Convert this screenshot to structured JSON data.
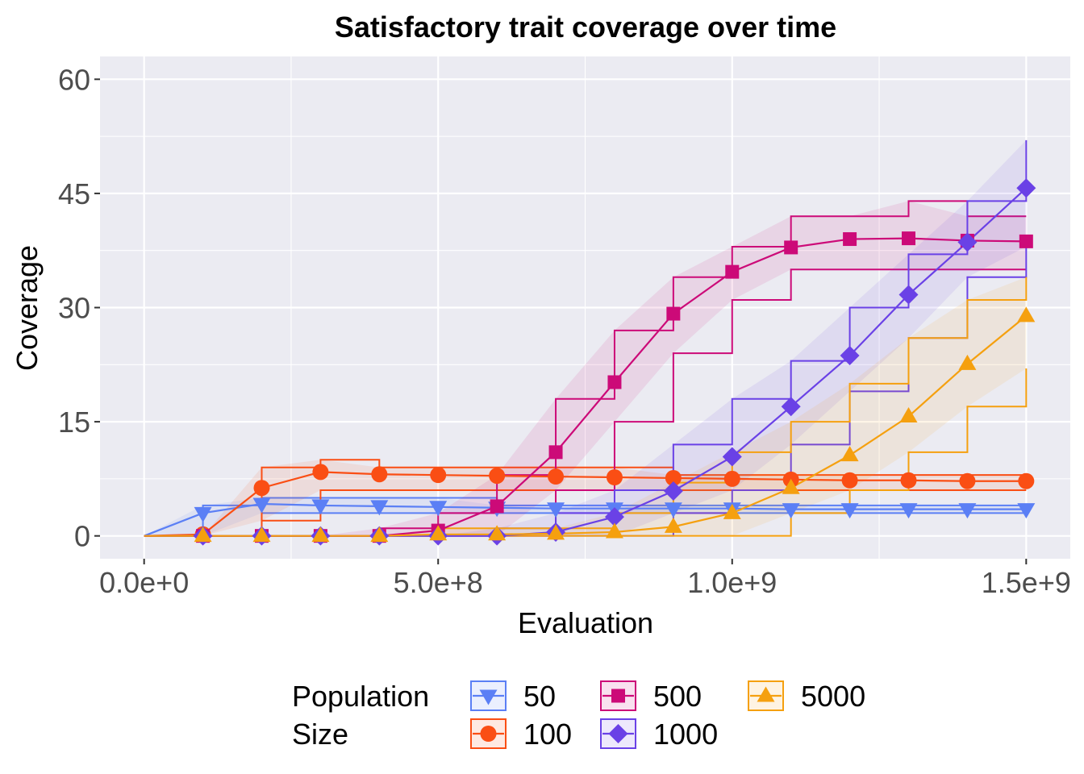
{
  "chart_data": {
    "type": "line",
    "title": "Satisfactory trait coverage over time",
    "xlabel": "Evaluation",
    "ylabel": "Coverage",
    "xlim": [
      -75000000,
      1575000000
    ],
    "ylim": [
      -3,
      63
    ],
    "x_ticks": [
      0,
      500000000,
      1000000000,
      1500000000
    ],
    "x_tick_labels": [
      "0.0e+0",
      "5.0e+8",
      "1.0e+9",
      "1.5e+9"
    ],
    "y_ticks": [
      0,
      15,
      30,
      45,
      60
    ],
    "y_tick_labels": [
      "0",
      "15",
      "30",
      "45",
      "60"
    ],
    "grid": true,
    "background": "#ebebf2",
    "legend": {
      "title_lines": [
        "Population",
        "Size"
      ],
      "position": "bottom"
    },
    "x": [
      0,
      100000000,
      200000000,
      300000000,
      400000000,
      500000000,
      600000000,
      700000000,
      800000000,
      900000000,
      1000000000,
      1100000000,
      1200000000,
      1300000000,
      1400000000,
      1500000000
    ],
    "series": [
      {
        "name": "50",
        "color": "#5b7ff5",
        "marker": "triangle-down",
        "values": [
          0,
          3,
          4.2,
          4.0,
          3.9,
          3.8,
          3.7,
          3.6,
          3.6,
          3.6,
          3.6,
          3.5,
          3.5,
          3.5,
          3.5,
          3.5
        ],
        "lower": [
          0,
          0,
          3,
          3,
          3,
          3,
          3,
          3,
          3,
          3,
          3,
          3,
          3,
          3,
          3,
          3
        ],
        "upper": [
          0,
          4,
          5,
          5,
          5,
          5,
          4,
          4,
          4,
          4,
          4,
          4,
          4,
          4,
          4,
          4
        ]
      },
      {
        "name": "100",
        "color": "#fa4e14",
        "marker": "circle",
        "values": [
          0,
          0.2,
          6.3,
          8.4,
          8.1,
          8.0,
          7.9,
          7.8,
          7.7,
          7.6,
          7.5,
          7.4,
          7.3,
          7.3,
          7.2,
          7.2
        ],
        "lower": [
          0,
          0,
          2,
          6,
          6,
          6,
          6,
          6,
          6,
          6,
          6,
          6,
          6,
          6,
          6,
          6
        ],
        "upper": [
          0,
          0,
          9,
          10,
          9,
          9,
          9,
          9,
          9,
          8,
          8,
          8,
          8,
          8,
          8,
          8
        ]
      },
      {
        "name": "500",
        "color": "#cc0a78",
        "marker": "square",
        "values": [
          0,
          0,
          0,
          0,
          0,
          0.7,
          3.9,
          11,
          20.2,
          29.2,
          34.7,
          37.9,
          39.0,
          39.1,
          38.8,
          38.7
        ],
        "lower": [
          0,
          0,
          0,
          0,
          0,
          0,
          0,
          6,
          15,
          24,
          31,
          35,
          35,
          35,
          35,
          35
        ],
        "upper": [
          0,
          0,
          0,
          0,
          1,
          3,
          8,
          18,
          27,
          34,
          38,
          42,
          42,
          44,
          42,
          42
        ]
      },
      {
        "name": "1000",
        "color": "#6a41e6",
        "marker": "diamond",
        "values": [
          0,
          0,
          0,
          0,
          0,
          0,
          0,
          0.5,
          2.5,
          5.9,
          10.4,
          17,
          23.7,
          31.7,
          38.6,
          45.7
        ],
        "lower": [
          0,
          0,
          0,
          0,
          0,
          0,
          0,
          0,
          0,
          3,
          6,
          12,
          19,
          26,
          34,
          38
        ],
        "upper": [
          0,
          0,
          0,
          0,
          0,
          0,
          1,
          3,
          6,
          12,
          18,
          23,
          30,
          37,
          44,
          52
        ]
      },
      {
        "name": "5000",
        "color": "#f5a00f",
        "marker": "triangle-up",
        "values": [
          0,
          0,
          0,
          0,
          0,
          0.2,
          0.2,
          0.3,
          0.5,
          1.2,
          3.0,
          6.3,
          10.6,
          15.7,
          22.6,
          28.9
        ],
        "lower": [
          0,
          0,
          0,
          0,
          0,
          0,
          0,
          0,
          0,
          0,
          0,
          3,
          6,
          11,
          17,
          22
        ],
        "upper": [
          0,
          0,
          0,
          0,
          0,
          1,
          1,
          1,
          3,
          7,
          11,
          15,
          20,
          26,
          31,
          34
        ]
      }
    ]
  }
}
